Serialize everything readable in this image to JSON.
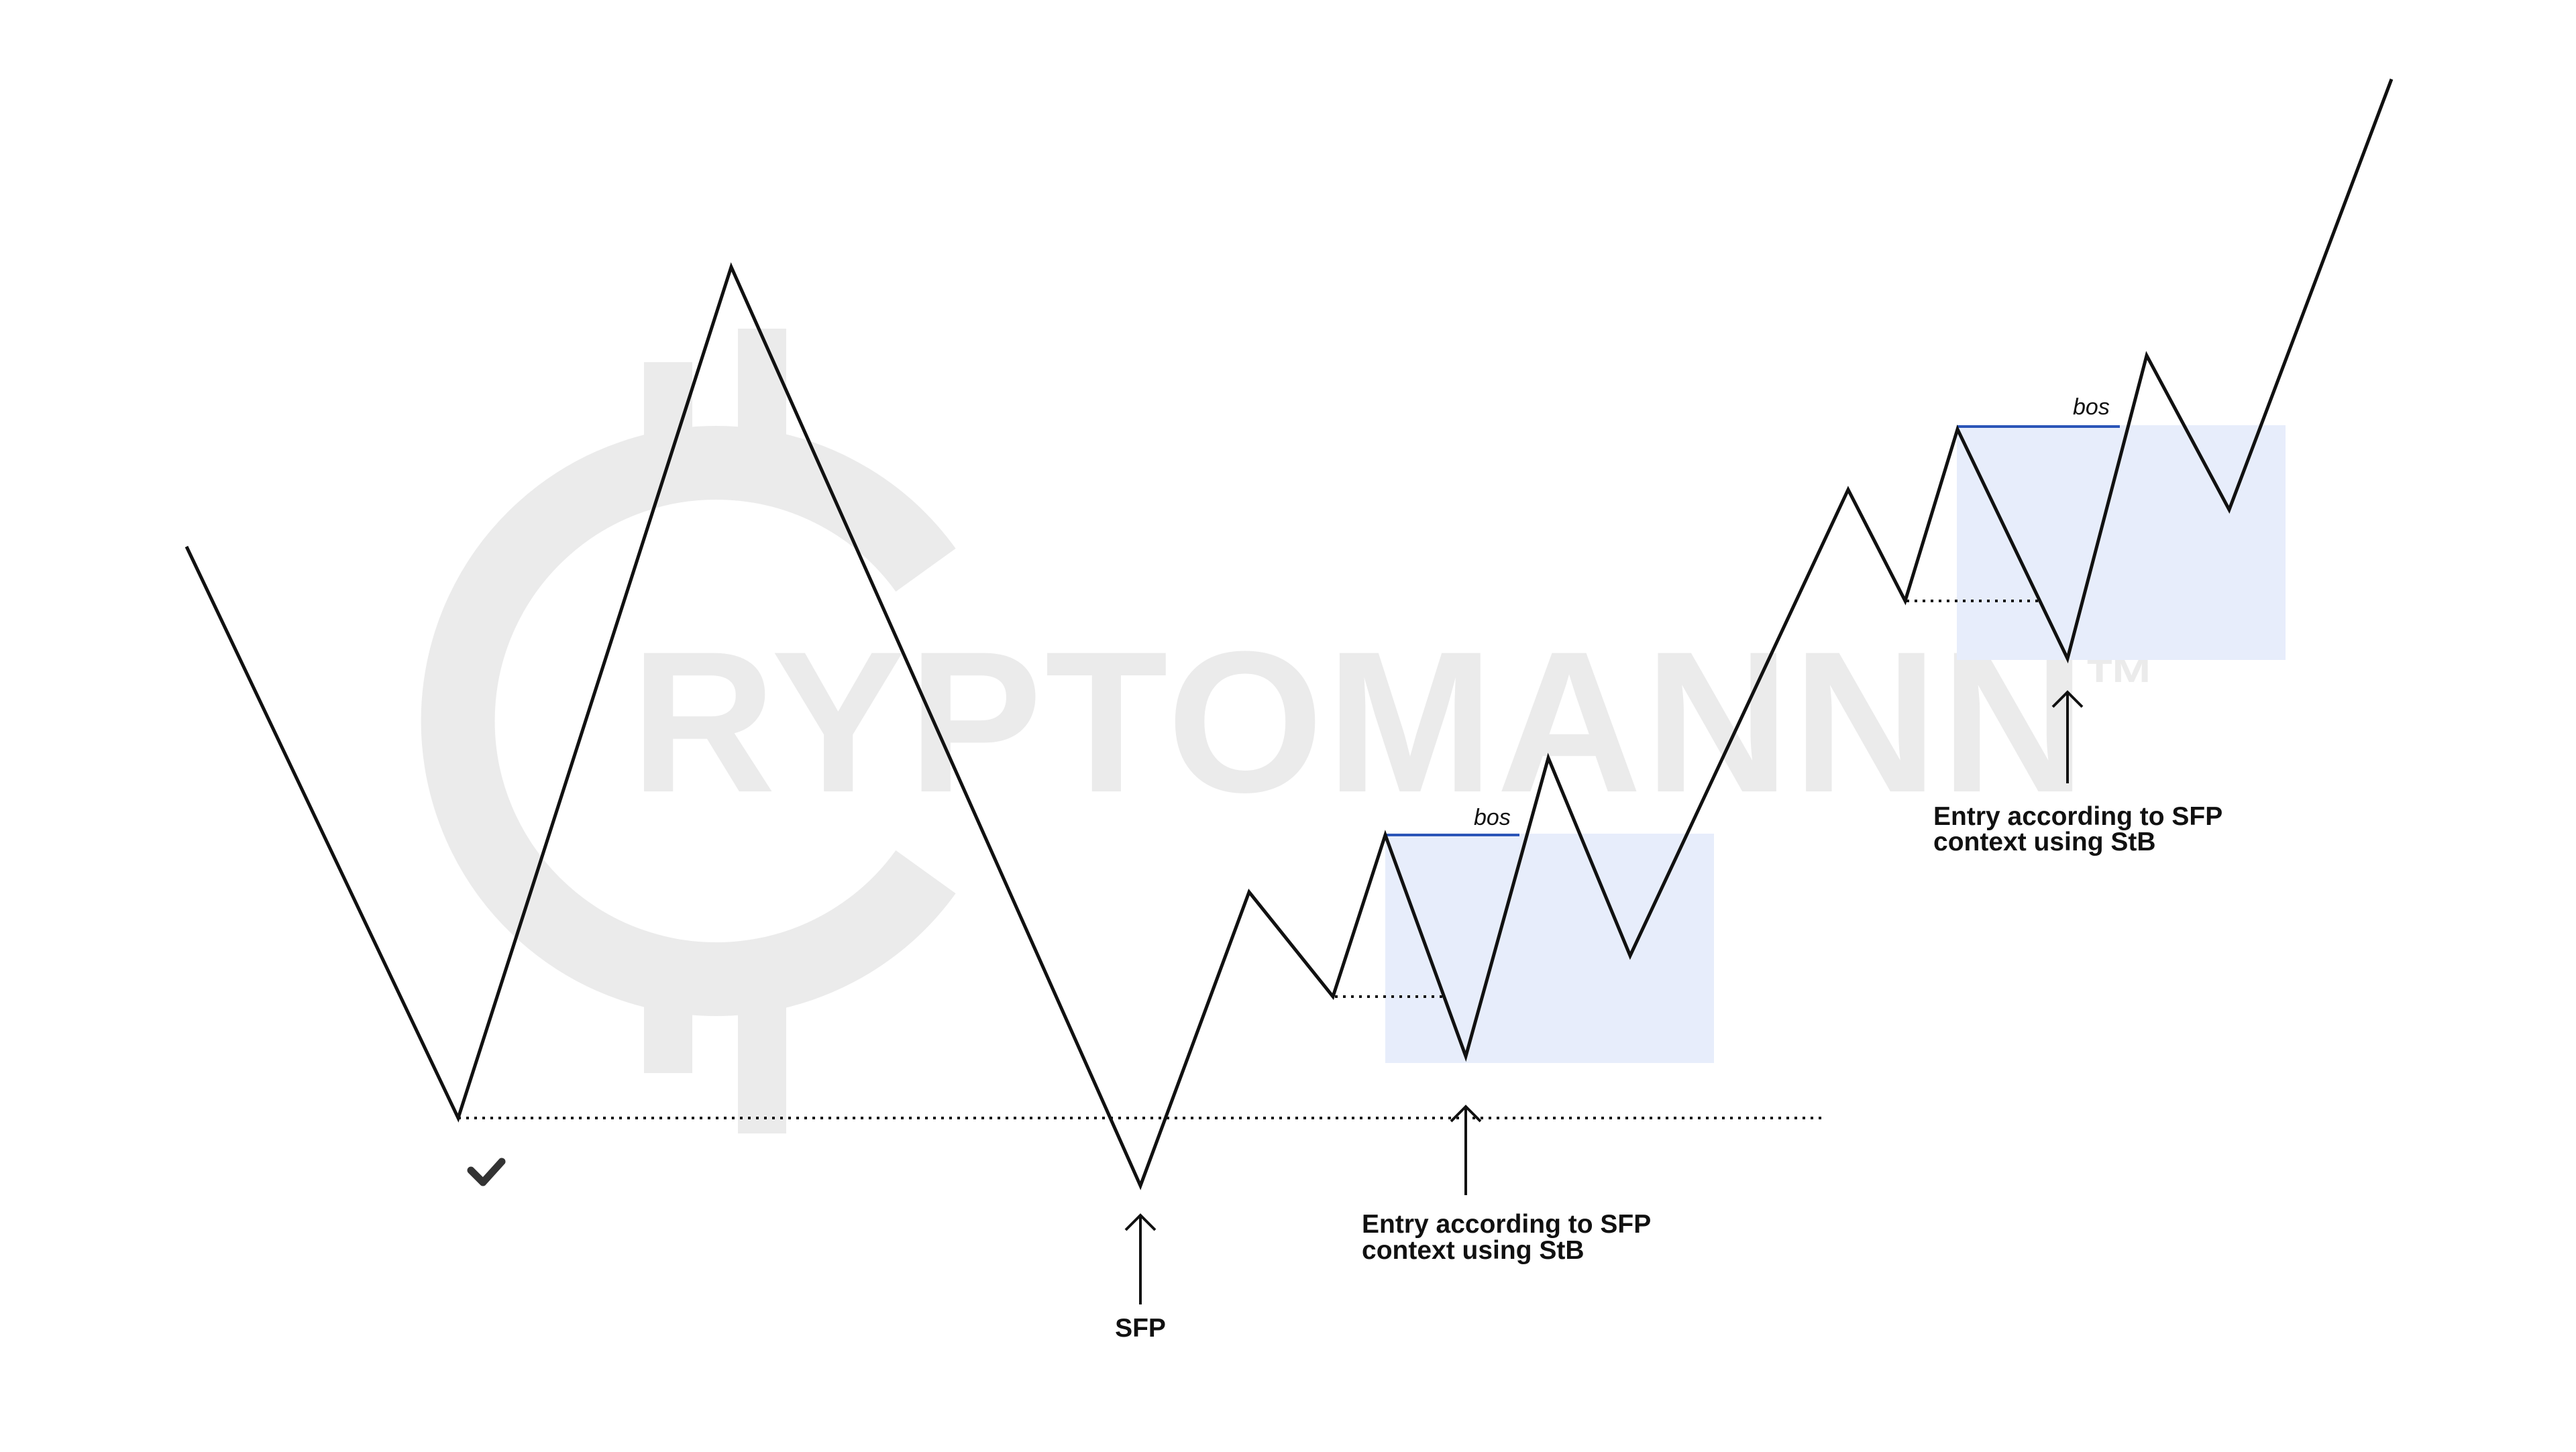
{
  "watermark": {
    "text": "RYPTOMANNN",
    "tm": "™"
  },
  "labels": {
    "sfp": "SFP",
    "bos_1": "bos",
    "bos_2": "bos",
    "entry_1_line1": "Entry according to SFP",
    "entry_1_line2": "context using StB",
    "entry_2_line1": "Entry according to SFP",
    "entry_2_line2": "context using StB"
  },
  "icons": {
    "confirmation": "checkmark-icon"
  },
  "colors": {
    "price_line": "#111111",
    "bos_line": "#2b55b8",
    "zone_fill": "#e7edfb",
    "watermark": "#ebebeb"
  }
}
